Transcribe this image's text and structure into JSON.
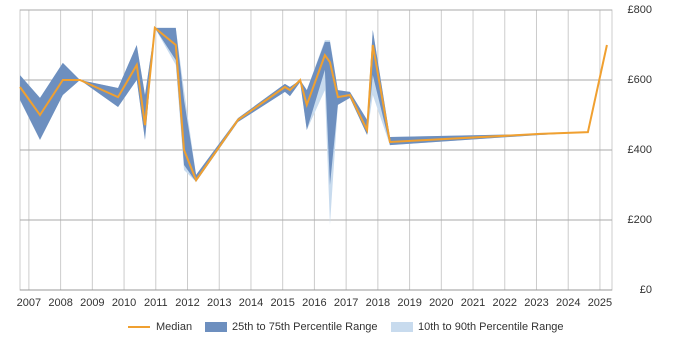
{
  "chart_data": {
    "type": "line",
    "x": [
      2006.72,
      2007.35,
      2008.07,
      2008.61,
      2009.81,
      2010.4,
      2010.66,
      2010.97,
      2011.63,
      2011.89,
      2012.27,
      2013.59,
      2015.07,
      2015.23,
      2015.55,
      2015.76,
      2016.33,
      2016.49,
      2016.74,
      2017.12,
      2017.66,
      2017.84,
      2018.38,
      2023.11,
      2024.62,
      2025.22
    ],
    "series": [
      {
        "name": "Median",
        "color": "#f0a030",
        "values": [
          580,
          500,
          600,
          600,
          551,
          643,
          471,
          749,
          700,
          400,
          314,
          486,
          580,
          571,
          600,
          529,
          671,
          651,
          551,
          557,
          457,
          700,
          423,
          446,
          451,
          700
        ]
      }
    ],
    "bands": [
      {
        "name": "25th to 75th Percentile Range",
        "color": "#6d8fbf",
        "lower": [
          543,
          429,
          557,
          600,
          523,
          600,
          429,
          749,
          657,
          357,
          309,
          480,
          566,
          554,
          594,
          457,
          629,
          300,
          529,
          549,
          443,
          614,
          414,
          443,
          451,
          700
        ],
        "upper": [
          614,
          549,
          649,
          600,
          577,
          700,
          557,
          749,
          749,
          543,
          329,
          491,
          589,
          580,
          600,
          571,
          709,
          709,
          571,
          566,
          486,
          743,
          437,
          446,
          451,
          700
        ]
      },
      {
        "name": "10th to 90th Percentile Range",
        "color": "#c8dbee",
        "lower": [
          543,
          429,
          557,
          600,
          523,
          600,
          429,
          749,
          643,
          343,
          309,
          480,
          566,
          554,
          594,
          457,
          571,
          186,
          529,
          549,
          443,
          557,
          414,
          443,
          451,
          700
        ],
        "upper": [
          614,
          549,
          649,
          600,
          577,
          700,
          557,
          749,
          749,
          571,
          329,
          491,
          589,
          580,
          600,
          571,
          714,
          714,
          571,
          566,
          486,
          743,
          437,
          446,
          451,
          700
        ]
      }
    ],
    "xlim": [
      2006.72,
      2025.38
    ],
    "xticks": [
      2007,
      2008,
      2009,
      2010,
      2011,
      2012,
      2013,
      2014,
      2015,
      2016,
      2017,
      2018,
      2019,
      2020,
      2021,
      2022,
      2023,
      2024,
      2025
    ],
    "ylim": [
      0,
      800
    ],
    "yticks": [
      {
        "value": 0,
        "label": "£0"
      },
      {
        "value": 200,
        "label": "£200"
      },
      {
        "value": 400,
        "label": "£400"
      },
      {
        "value": 600,
        "label": "£600"
      },
      {
        "value": 800,
        "label": "£800"
      }
    ],
    "grid": true
  }
}
